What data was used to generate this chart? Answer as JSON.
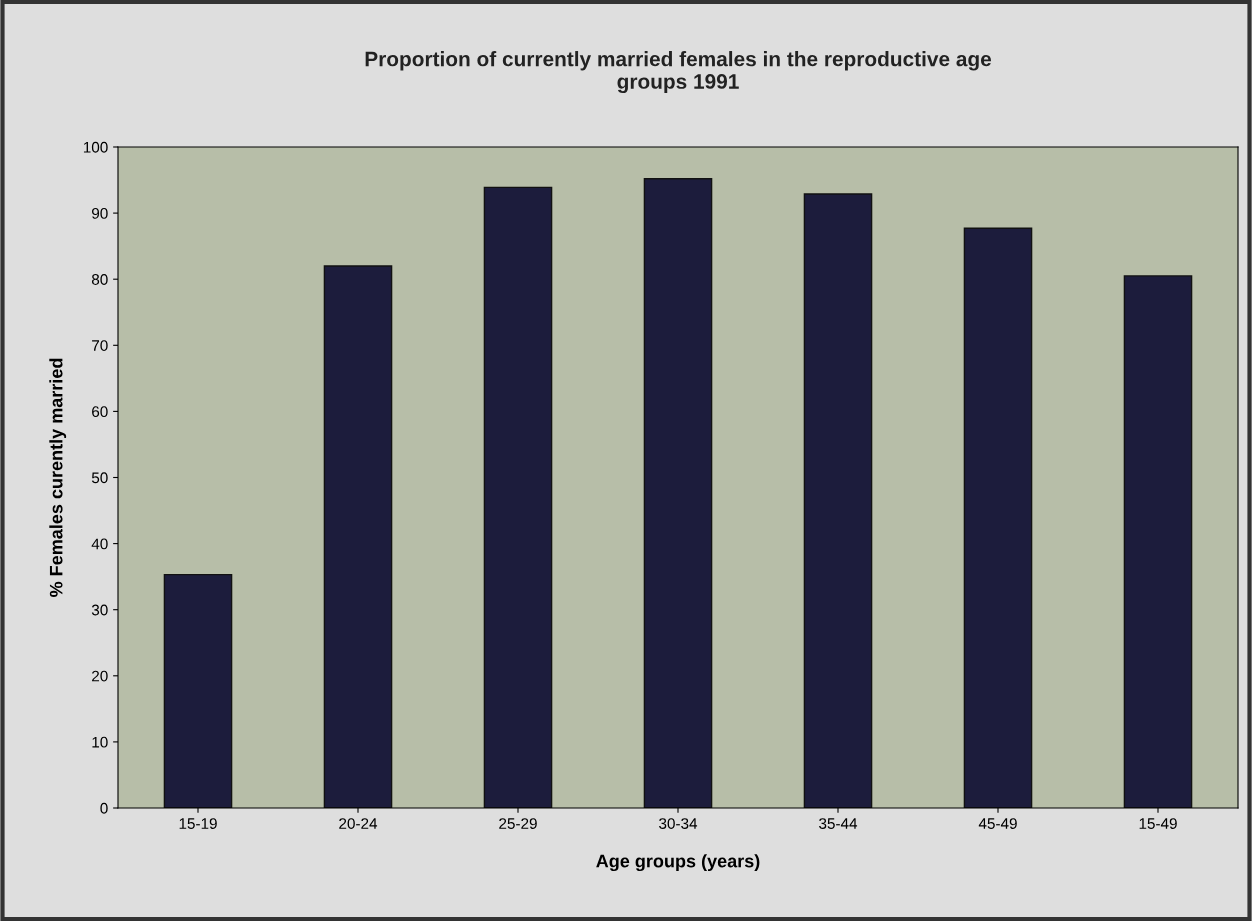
{
  "chart_data": {
    "type": "bar",
    "title": "Proportion of currently married females in the reproductive age\ngroups 1991",
    "xlabel": "Age groups (years)",
    "ylabel": "% Females curently married",
    "categories": [
      "15-19",
      "20-24",
      "25-29",
      "30-34",
      "35-44",
      "45-49",
      "15-49"
    ],
    "values": [
      35.3,
      82.0,
      93.9,
      95.2,
      92.9,
      87.7,
      80.5
    ],
    "color": "#1c1c3c",
    "ylim": [
      0,
      100
    ],
    "yticks": [
      0,
      10,
      20,
      30,
      40,
      50,
      60,
      70,
      80,
      90,
      100
    ],
    "grid": false,
    "legend": false
  }
}
